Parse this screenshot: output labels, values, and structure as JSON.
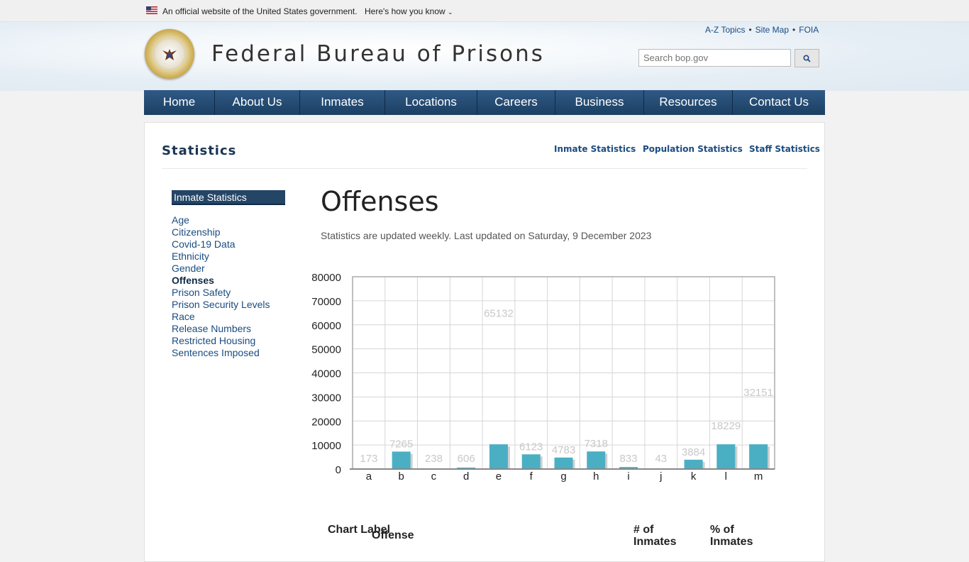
{
  "gov_banner": {
    "text": "An official website of the United States government.",
    "how_link": "Here's how you know"
  },
  "header": {
    "site_title": "Federal Bureau of Prisons",
    "util_links": [
      "A-Z Topics",
      "Site Map",
      "FOIA"
    ],
    "search_placeholder": "Search bop.gov"
  },
  "nav": {
    "items": [
      "Home",
      "About Us",
      "Inmates",
      "Locations",
      "Careers",
      "Business",
      "Resources",
      "Contact Us"
    ]
  },
  "section": {
    "title": "Statistics",
    "sub_links": [
      "Inmate Statistics",
      "Population Statistics",
      "Staff Statistics"
    ]
  },
  "sidebar": {
    "heading": "Inmate Statistics",
    "items": [
      "Age",
      "Citizenship",
      "Covid-19 Data",
      "Ethnicity",
      "Gender",
      "Offenses",
      "Prison Safety",
      "Prison Security Levels",
      "Race",
      "Release Numbers",
      "Restricted Housing",
      "Sentences Imposed"
    ],
    "active": "Offenses"
  },
  "main": {
    "heading": "Offenses",
    "updated": "Statistics are updated weekly. Last updated on Saturday, 9 December 2023"
  },
  "chart_data": {
    "type": "bar",
    "categories": [
      "a",
      "b",
      "c",
      "d",
      "e",
      "f",
      "g",
      "h",
      "i",
      "j",
      "k",
      "l",
      "m"
    ],
    "values": [
      173,
      7265,
      238,
      606,
      65132,
      6123,
      4783,
      7318,
      833,
      43,
      3884,
      18229,
      32151
    ],
    "yticks": [
      "0",
      "10000",
      "20000",
      "30000",
      "40000",
      "50000",
      "60000",
      "70000",
      "80000"
    ],
    "ylim": [
      0,
      80000
    ],
    "grid": true,
    "bar_color": "#4bafc4"
  },
  "table": {
    "headers": [
      "Chart Label",
      "Offense",
      "# of Inmates",
      "% of Inmates"
    ]
  }
}
